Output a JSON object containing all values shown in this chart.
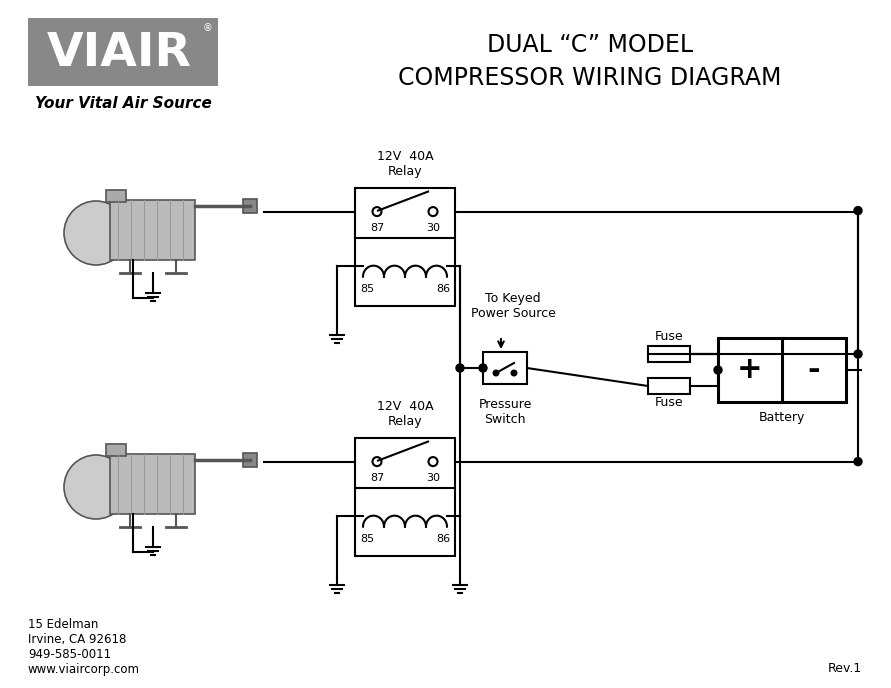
{
  "title_line1": "DUAL “C” MODEL",
  "title_line2": "COMPRESSOR WIRING DIAGRAM",
  "logo_text": "VIAIR",
  "logo_subtitle": "Your Vital Air Source",
  "relay1_label": "12V  40A\nRelay",
  "relay2_label": "12V  40A\nRelay",
  "relay_pins_top": [
    "87",
    "30"
  ],
  "relay_pins_bot": [
    "85",
    "86"
  ],
  "pressure_switch_label": "Pressure\nSwitch",
  "keyed_power_label": "To Keyed\nPower Source",
  "fuse_label": "Fuse",
  "fuse_label2": "Fuse",
  "battery_label": "Battery",
  "battery_plus": "+",
  "battery_minus": "-",
  "footer_line1": "15 Edelman",
  "footer_line2": "Irvine, CA 92618",
  "footer_line3": "949-585-0011",
  "footer_line4": "www.viaircorp.com",
  "rev_label": "Rev.1",
  "bg_color": "#ffffff",
  "line_color": "#000000",
  "logo_bg": "#888888",
  "logo_fg": "#ffffff"
}
